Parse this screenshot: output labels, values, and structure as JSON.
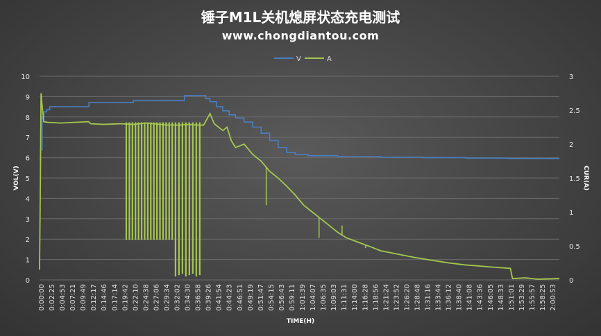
{
  "chart_data": {
    "type": "line",
    "title": "锤子M1L关机熄屏状态充电测试",
    "subtitle": "www.chongdiantou.com",
    "xlabel": "TIME(H)",
    "ylabel_left": "VOL(V)",
    "ylabel_right": "CUR(A)",
    "ylim_left": [
      0,
      10
    ],
    "ylim_right": [
      0,
      3
    ],
    "yticks_left": [
      "0",
      "1",
      "2",
      "3",
      "4",
      "5",
      "6",
      "7",
      "8",
      "9",
      "10"
    ],
    "yticks_right": [
      "0",
      "0.5",
      "1",
      "1.5",
      "2",
      "2.5",
      "3"
    ],
    "x_tick_labels": [
      "0:00:00",
      "0:02:25",
      "0:04:53",
      "0:07:21",
      "0:09:49",
      "0:12:17",
      "0:14:46",
      "0:17:14",
      "0:19:42",
      "0:22:10",
      "0:24:38",
      "0:27:06",
      "0:29:34",
      "0:32:02",
      "0:34:30",
      "0:36:58",
      "0:39:26",
      "0:41:54",
      "0:44:23",
      "0:46:51",
      "0:49:19",
      "0:51:47",
      "0:54:15",
      "0:56:43",
      "0:59:11",
      "1:01:39",
      "1:04:07",
      "1:06:35",
      "1:09:03",
      "1:11:31",
      "1:14:00",
      "1:16:28",
      "1:18:56",
      "1:21:24",
      "1:23:52",
      "1:26:20",
      "1:28:48",
      "1:31:16",
      "1:33:44",
      "1:36:12",
      "1:38:40",
      "1:41:08",
      "1:43:36",
      "1:46:05",
      "1:48:33",
      "1:51:01",
      "1:53:29",
      "1:55:57",
      "1:58:25",
      "2:00:53"
    ],
    "x_range_min": [
      0,
      122
    ],
    "legend_position": "top-center",
    "grid": true,
    "series": [
      {
        "name": "V",
        "axis": "left",
        "color": "#4a7fc1",
        "points": [
          [
            0,
            5.9
          ],
          [
            0.2,
            6.4
          ],
          [
            0.6,
            8.0
          ],
          [
            1,
            8.25
          ],
          [
            1.6,
            8.35
          ],
          [
            2.4,
            8.5
          ],
          [
            10,
            8.5
          ],
          [
            11.6,
            8.7
          ],
          [
            21,
            8.7
          ],
          [
            22,
            8.8
          ],
          [
            33,
            8.8
          ],
          [
            34,
            9.05
          ],
          [
            37.8,
            9.05
          ],
          [
            39,
            8.9
          ],
          [
            40,
            8.75
          ],
          [
            41.5,
            8.5
          ],
          [
            43,
            8.3
          ],
          [
            44.5,
            8.1
          ],
          [
            46,
            7.95
          ],
          [
            48,
            7.75
          ],
          [
            50,
            7.5
          ],
          [
            52,
            7.2
          ],
          [
            54,
            6.85
          ],
          [
            56,
            6.5
          ],
          [
            58,
            6.25
          ],
          [
            60,
            6.15
          ],
          [
            63,
            6.1
          ],
          [
            70,
            6.05
          ],
          [
            80,
            6.02
          ],
          [
            90,
            6.0
          ],
          [
            100,
            5.98
          ],
          [
            110,
            5.96
          ],
          [
            120,
            5.95
          ],
          [
            122,
            5.95
          ]
        ]
      },
      {
        "name": "A",
        "axis": "right",
        "color": "#a6c84e",
        "points": [
          [
            0,
            0.15
          ],
          [
            0.2,
            1.5
          ],
          [
            0.35,
            2.75
          ],
          [
            0.55,
            2.6
          ],
          [
            1,
            2.33
          ],
          [
            2,
            2.32
          ],
          [
            5,
            2.31
          ],
          [
            8,
            2.32
          ],
          [
            11.5,
            2.33
          ],
          [
            12,
            2.3
          ],
          [
            15,
            2.29
          ],
          [
            19,
            2.3
          ],
          [
            22,
            2.29
          ],
          [
            25,
            2.31
          ],
          [
            30,
            2.28
          ],
          [
            33,
            2.28
          ],
          [
            35,
            2.29
          ],
          [
            37,
            2.28
          ],
          [
            38.5,
            2.28
          ],
          [
            40,
            2.45
          ],
          [
            41,
            2.3
          ],
          [
            42,
            2.25
          ],
          [
            43,
            2.2
          ],
          [
            44,
            2.25
          ],
          [
            45,
            2.05
          ],
          [
            46,
            1.95
          ],
          [
            48,
            2.0
          ],
          [
            50,
            1.85
          ],
          [
            52,
            1.75
          ],
          [
            54,
            1.6
          ],
          [
            56,
            1.5
          ],
          [
            58,
            1.38
          ],
          [
            60,
            1.25
          ],
          [
            62,
            1.1
          ],
          [
            64,
            1.0
          ],
          [
            66,
            0.9
          ],
          [
            68,
            0.8
          ],
          [
            70,
            0.7
          ],
          [
            72,
            0.62
          ],
          [
            75,
            0.55
          ],
          [
            78,
            0.48
          ],
          [
            80,
            0.43
          ],
          [
            84,
            0.38
          ],
          [
            88,
            0.33
          ],
          [
            92,
            0.29
          ],
          [
            96,
            0.25
          ],
          [
            100,
            0.22
          ],
          [
            104,
            0.2
          ],
          [
            108,
            0.18
          ],
          [
            110.5,
            0.17
          ],
          [
            111,
            0.02
          ],
          [
            114,
            0.03
          ],
          [
            117,
            0.01
          ],
          [
            122,
            0.02
          ]
        ]
      }
    ],
    "current_dropouts": [
      {
        "x_range": [
          20.0,
          31.5
        ],
        "count": 16,
        "min": 0.59
      },
      {
        "x_range": [
          31.5,
          38.0
        ],
        "count": 8,
        "min": 0.05
      }
    ],
    "current_spikes": [
      [
        53.2,
        1.1
      ],
      [
        65.6,
        0.62
      ],
      [
        71.0,
        0.8
      ],
      [
        76.5,
        0.47
      ]
    ]
  }
}
